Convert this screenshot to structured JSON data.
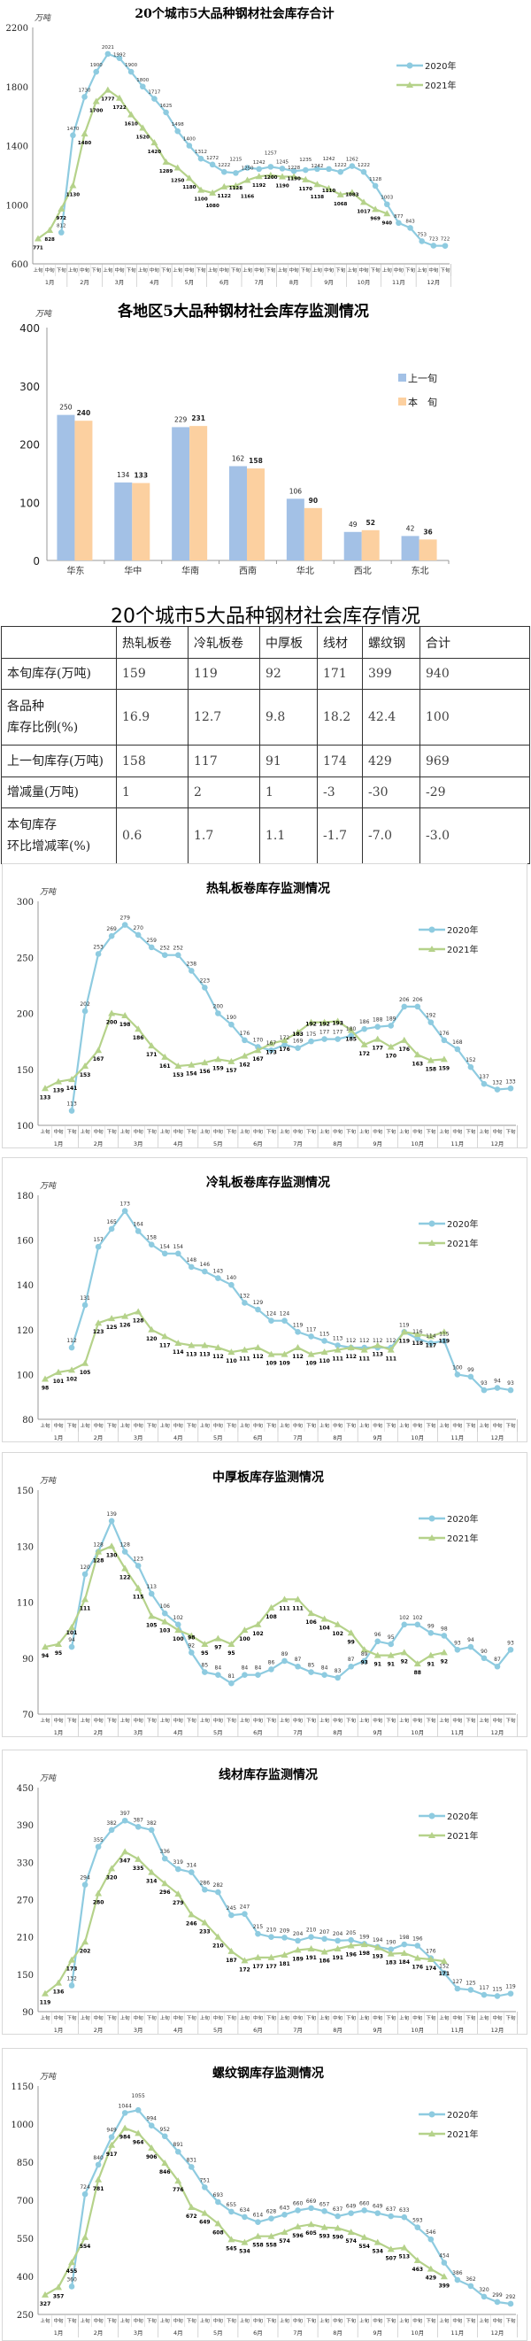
{
  "unit": "万吨",
  "periods": [
    "上旬",
    "中旬",
    "下旬"
  ],
  "months": [
    "1月",
    "2月",
    "3月",
    "4月",
    "5月",
    "6月",
    "7月",
    "8月",
    "9月",
    "10月",
    "11月",
    "12月"
  ],
  "chart_data": [
    {
      "id": "total",
      "type": "line",
      "title": "20个城市5大品种钢材社会库存合计",
      "ylabel": "万吨",
      "ylim": [
        600,
        2200
      ],
      "yticks": [
        600,
        1000,
        1400,
        1800,
        2200
      ],
      "legend": "right",
      "series": [
        {
          "name": "2020年",
          "color": "#8ecbe0",
          "marker": "circle",
          "values": [
            null,
            null,
            812,
            1470,
            1730,
            1900,
            2021,
            1992,
            1900,
            1800,
            1717,
            1625,
            1498,
            1400,
            1312,
            1272,
            1222,
            1215,
            1250,
            1242,
            1257,
            1245,
            1228,
            1235,
            1242,
            1242,
            1222,
            1262,
            1222,
            1128,
            1003,
            877,
            843,
            753,
            723,
            722
          ]
        },
        {
          "name": "2021年",
          "color": "#b5d28a",
          "marker": "triangle",
          "values": [
            771,
            828,
            972,
            1130,
            1480,
            1700,
            1777,
            1722,
            1610,
            1520,
            1420,
            1289,
            1250,
            1180,
            1100,
            1080,
            1122,
            1128,
            1166,
            1192,
            1200,
            1190,
            1190,
            1170,
            1138,
            1110,
            1068,
            1083,
            1017,
            969,
            940
          ]
        }
      ]
    },
    {
      "id": "region",
      "type": "bar",
      "title": "各地区5大品种钢材社会库存监测情况",
      "ylabel": "万吨",
      "ylim": [
        0,
        400
      ],
      "yticks": [
        0,
        100,
        200,
        300,
        400
      ],
      "legend": "right",
      "categories": [
        "华东",
        "华中",
        "华南",
        "西南",
        "华北",
        "西北",
        "东北"
      ],
      "series": [
        {
          "name": "上一旬",
          "color": "#a3c1e6",
          "values": [
            250,
            134,
            229,
            162,
            106,
            49,
            42
          ]
        },
        {
          "name": "本　旬",
          "color": "#fcd0a0",
          "values": [
            240,
            133,
            231,
            158,
            90,
            52,
            36
          ]
        }
      ]
    },
    {
      "id": "hot",
      "type": "line",
      "title": "热轧板卷库存监测情况",
      "ylabel": "万吨",
      "ylim": [
        100,
        300
      ],
      "yticks": [
        100,
        150,
        200,
        250,
        300
      ],
      "legend": "right",
      "series": [
        {
          "name": "2020年",
          "color": "#8ecbe0",
          "marker": "circle",
          "values": [
            null,
            null,
            113,
            202,
            253,
            269,
            279,
            270,
            259,
            252,
            252,
            238,
            223,
            200,
            190,
            176,
            170,
            167,
            172,
            169,
            175,
            177,
            177,
            180,
            186,
            188,
            189,
            206,
            206,
            192,
            176,
            168,
            152,
            137,
            132,
            133
          ]
        },
        {
          "name": "2021年",
          "color": "#b5d28a",
          "marker": "triangle",
          "values": [
            133,
            139,
            141,
            153,
            167,
            200,
            198,
            186,
            171,
            161,
            153,
            154,
            156,
            159,
            157,
            162,
            167,
            173,
            176,
            183,
            192,
            192,
            193,
            185,
            172,
            177,
            170,
            176,
            163,
            158,
            159
          ]
        }
      ]
    },
    {
      "id": "cold",
      "type": "line",
      "title": "冷轧板卷库存监测情况",
      "ylabel": "万吨",
      "ylim": [
        80,
        180
      ],
      "yticks": [
        80,
        100,
        120,
        140,
        160,
        180
      ],
      "legend": "right",
      "series": [
        {
          "name": "2020年",
          "color": "#8ecbe0",
          "marker": "circle",
          "values": [
            null,
            null,
            112,
            131,
            157,
            165,
            173,
            164,
            158,
            154,
            154,
            148,
            146,
            143,
            140,
            132,
            129,
            124,
            124,
            119,
            117,
            115,
            113,
            112,
            112,
            112,
            112,
            119,
            116,
            114,
            115,
            100,
            99,
            93,
            94,
            93
          ]
        },
        {
          "name": "2021年",
          "color": "#b5d28a",
          "marker": "triangle",
          "values": [
            98,
            101,
            102,
            105,
            123,
            125,
            126,
            128,
            120,
            117,
            114,
            113,
            113,
            112,
            110,
            111,
            112,
            109,
            109,
            112,
            109,
            110,
            111,
            112,
            111,
            113,
            111,
            119,
            118,
            117,
            119
          ]
        }
      ]
    },
    {
      "id": "plate",
      "type": "line",
      "title": "中厚板库存监测情况",
      "ylabel": "万吨",
      "ylim": [
        70,
        150
      ],
      "yticks": [
        70,
        90,
        110,
        130,
        150
      ],
      "legend": "right",
      "series": [
        {
          "name": "2020年",
          "color": "#8ecbe0",
          "marker": "circle",
          "values": [
            null,
            null,
            94,
            120,
            128,
            139,
            128,
            123,
            113,
            106,
            102,
            92,
            85,
            84,
            81,
            84,
            84,
            86,
            89,
            87,
            85,
            84,
            83,
            87,
            89,
            96,
            95,
            102,
            102,
            99,
            98,
            93,
            94,
            90,
            87,
            93
          ]
        },
        {
          "name": "2021年",
          "color": "#b5d28a",
          "marker": "triangle",
          "values": [
            94,
            95,
            101,
            111,
            128,
            130,
            122,
            115,
            105,
            103,
            100,
            98,
            95,
            97,
            95,
            100,
            102,
            108,
            111,
            111,
            106,
            104,
            102,
            99,
            93,
            91,
            91,
            92,
            88,
            91,
            92
          ]
        }
      ]
    },
    {
      "id": "wire",
      "type": "line",
      "title": "线材库存监测情况",
      "ylabel": "万吨",
      "ylim": [
        90,
        450
      ],
      "yticks": [
        90,
        150,
        210,
        270,
        330,
        390,
        450
      ],
      "legend": "right",
      "series": [
        {
          "name": "2020年",
          "color": "#8ecbe0",
          "marker": "circle",
          "values": [
            null,
            null,
            132,
            294,
            355,
            382,
            397,
            387,
            382,
            336,
            319,
            314,
            286,
            282,
            245,
            247,
            215,
            210,
            209,
            204,
            210,
            207,
            204,
            205,
            199,
            194,
            190,
            198,
            196,
            176,
            152,
            127,
            125,
            117,
            115,
            119
          ]
        },
        {
          "name": "2021年",
          "color": "#b5d28a",
          "marker": "triangle",
          "values": [
            119,
            136,
            173,
            202,
            280,
            320,
            347,
            335,
            314,
            296,
            279,
            246,
            233,
            210,
            187,
            172,
            177,
            177,
            181,
            189,
            191,
            186,
            191,
            196,
            198,
            193,
            183,
            184,
            176,
            174,
            171
          ]
        }
      ]
    },
    {
      "id": "rebar",
      "type": "line",
      "title": "螺纹钢库存监测情况",
      "ylabel": "万吨",
      "ylim": [
        250,
        1150
      ],
      "yticks": [
        250,
        400,
        550,
        700,
        850,
        1000,
        1150
      ],
      "legend": "right",
      "series": [
        {
          "name": "2020年",
          "color": "#8ecbe0",
          "marker": "circle",
          "values": [
            null,
            null,
            360,
            724,
            840,
            949,
            1044,
            1055,
            994,
            952,
            891,
            831,
            751,
            693,
            655,
            634,
            614,
            628,
            643,
            660,
            669,
            657,
            637,
            649,
            660,
            649,
            637,
            633,
            593,
            546,
            454,
            386,
            362,
            320,
            299,
            292
          ]
        },
        {
          "name": "2021年",
          "color": "#b5d28a",
          "marker": "triangle",
          "values": [
            327,
            357,
            455,
            554,
            781,
            917,
            984,
            964,
            906,
            846,
            776,
            672,
            649,
            608,
            545,
            534,
            558,
            558,
            574,
            596,
            605,
            593,
            590,
            574,
            554,
            534,
            507,
            513,
            463,
            429,
            399
          ]
        }
      ]
    }
  ],
  "table": {
    "title": "20个城市5大品种钢材社会库存情况",
    "headers": [
      "",
      "热轧板卷",
      "冷轧板卷",
      "中厚板",
      "线材",
      "螺纹钢",
      "合计"
    ],
    "rows": [
      {
        "label": "本旬库存(万吨)",
        "cells": [
          "159",
          "119",
          "92",
          "171",
          "399",
          "940"
        ]
      },
      {
        "label": "各品种\n库存比例(%)",
        "cells": [
          "16.9",
          "12.7",
          "9.8",
          "18.2",
          "42.4",
          "100"
        ]
      },
      {
        "label": "上一旬库存(万吨)",
        "cells": [
          "158",
          "117",
          "91",
          "174",
          "429",
          "969"
        ]
      },
      {
        "label": "增减量(万吨)",
        "cells": [
          "1",
          "2",
          "1",
          "-3",
          "-30",
          "-29"
        ]
      },
      {
        "label": "本旬库存\n环比增减率(%)",
        "cells": [
          "0.6",
          "1.7",
          "1.1",
          "-1.7",
          "-7.0",
          "-3.0"
        ]
      }
    ]
  }
}
